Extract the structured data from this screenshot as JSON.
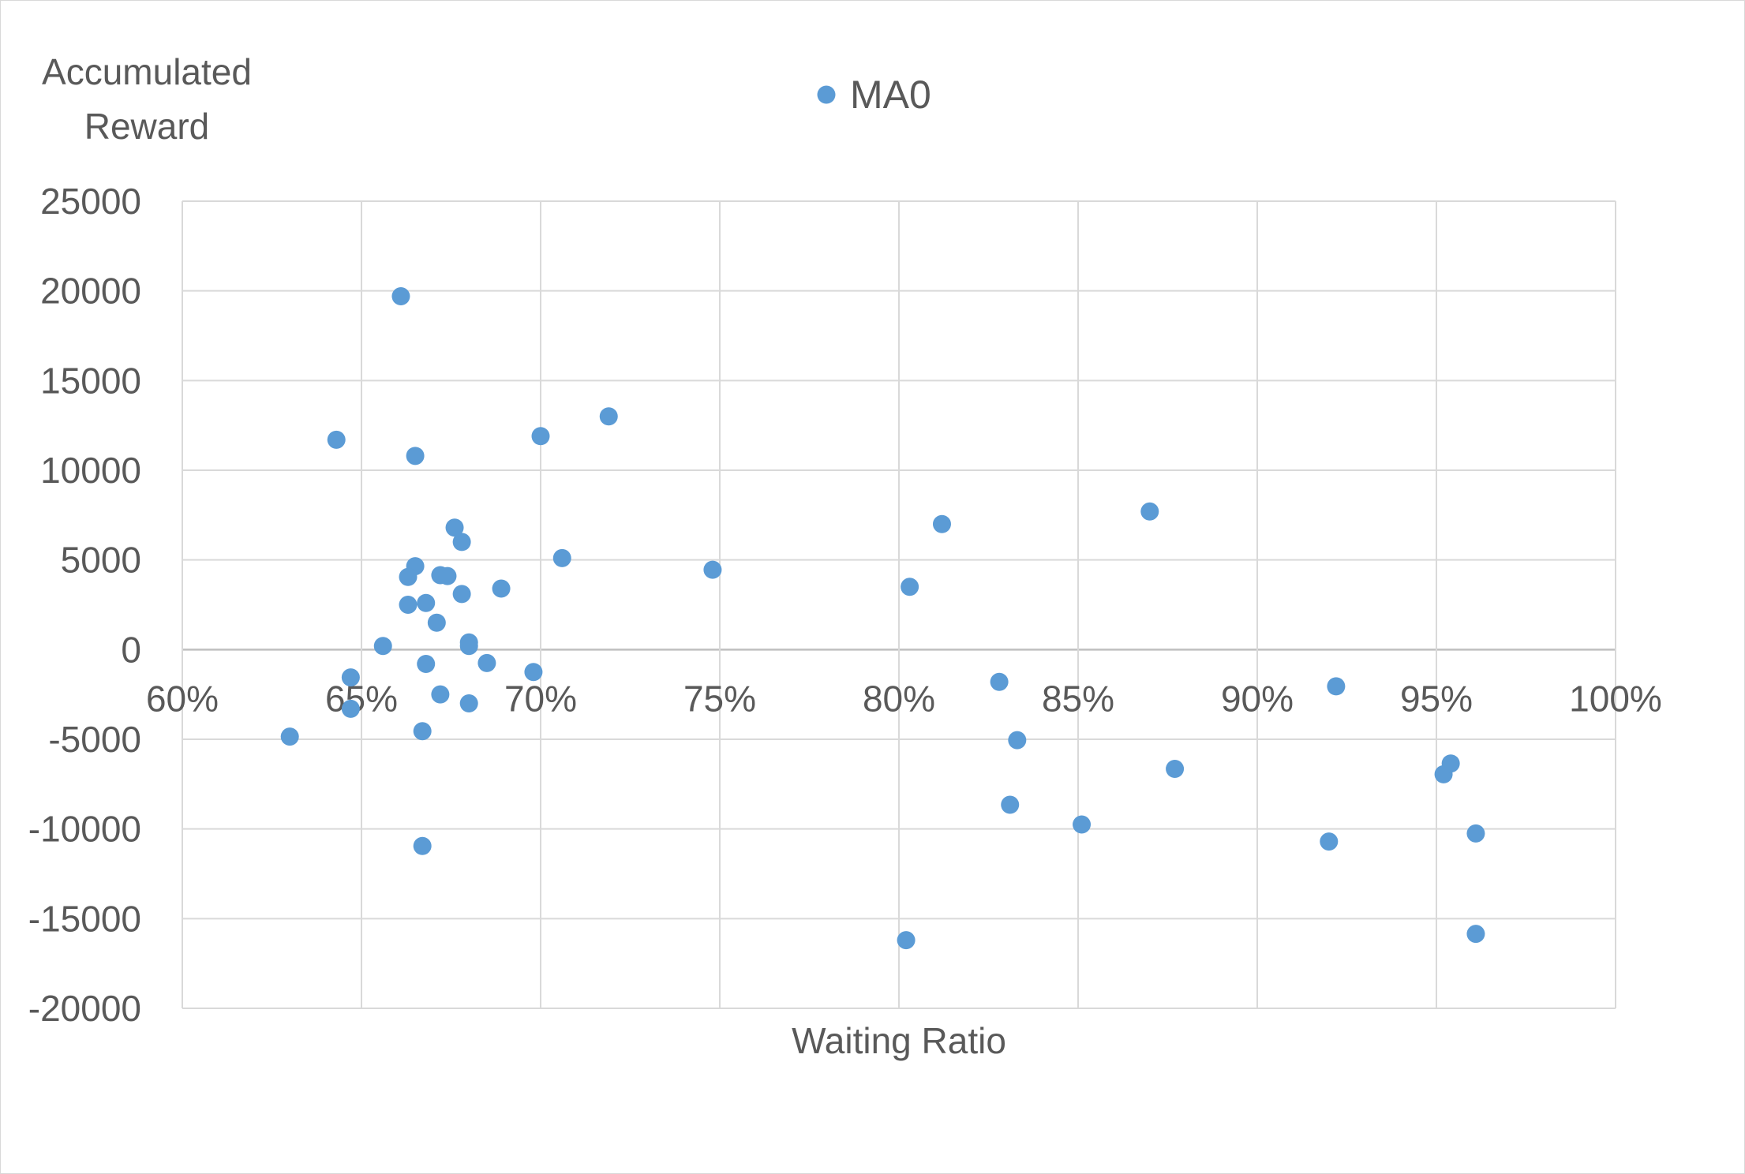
{
  "chart_data": {
    "type": "scatter",
    "title": "",
    "xlabel": "Waiting Ratio",
    "ylabel_lines": [
      "Accumulated",
      "Reward"
    ],
    "xlim": [
      0.6,
      1.0
    ],
    "ylim": [
      -20000,
      25000
    ],
    "x_ticks": [
      0.6,
      0.65,
      0.7,
      0.75,
      0.8,
      0.85,
      0.9,
      0.95,
      1.0
    ],
    "x_tick_labels": [
      "60%",
      "65%",
      "70%",
      "75%",
      "80%",
      "85%",
      "90%",
      "95%",
      "100%"
    ],
    "y_ticks": [
      25000,
      20000,
      15000,
      10000,
      5000,
      0,
      -5000,
      -10000,
      -15000,
      -20000
    ],
    "y_tick_labels": [
      "25000",
      "20000",
      "15000",
      "10000",
      "5000",
      "0",
      "-5000",
      "-10000",
      "-15000",
      "-20000"
    ],
    "grid": true,
    "legend_position": "top-center",
    "colors": {
      "marker": "#5b9bd5",
      "grid": "#d9d9d9",
      "zero_axis": "#bfbfbf",
      "text": "#595959"
    },
    "series": [
      {
        "name": "MA0",
        "points": [
          {
            "x": 0.661,
            "y": 19700
          },
          {
            "x": 0.643,
            "y": 11700
          },
          {
            "x": 0.665,
            "y": 10800
          },
          {
            "x": 0.7,
            "y": 11900
          },
          {
            "x": 0.719,
            "y": 13000
          },
          {
            "x": 0.676,
            "y": 6800
          },
          {
            "x": 0.678,
            "y": 6000
          },
          {
            "x": 0.706,
            "y": 5100
          },
          {
            "x": 0.748,
            "y": 4450
          },
          {
            "x": 0.665,
            "y": 4650
          },
          {
            "x": 0.663,
            "y": 4050
          },
          {
            "x": 0.672,
            "y": 4150
          },
          {
            "x": 0.674,
            "y": 4100
          },
          {
            "x": 0.678,
            "y": 3100
          },
          {
            "x": 0.689,
            "y": 3400
          },
          {
            "x": 0.663,
            "y": 2500
          },
          {
            "x": 0.668,
            "y": 2600
          },
          {
            "x": 0.671,
            "y": 1500
          },
          {
            "x": 0.68,
            "y": 400
          },
          {
            "x": 0.68,
            "y": 200
          },
          {
            "x": 0.656,
            "y": 200
          },
          {
            "x": 0.668,
            "y": -800
          },
          {
            "x": 0.685,
            "y": -750
          },
          {
            "x": 0.698,
            "y": -1250
          },
          {
            "x": 0.647,
            "y": -1550
          },
          {
            "x": 0.672,
            "y": -2500
          },
          {
            "x": 0.68,
            "y": -3000
          },
          {
            "x": 0.647,
            "y": -3300
          },
          {
            "x": 0.667,
            "y": -4550
          },
          {
            "x": 0.63,
            "y": -4850
          },
          {
            "x": 0.667,
            "y": -10950
          },
          {
            "x": 0.812,
            "y": 7000
          },
          {
            "x": 0.87,
            "y": 7700
          },
          {
            "x": 0.803,
            "y": 3500
          },
          {
            "x": 0.828,
            "y": -1800
          },
          {
            "x": 0.833,
            "y": -5050
          },
          {
            "x": 0.831,
            "y": -8650
          },
          {
            "x": 0.851,
            "y": -9750
          },
          {
            "x": 0.877,
            "y": -6650
          },
          {
            "x": 0.802,
            "y": -16200
          },
          {
            "x": 0.922,
            "y": -2050
          },
          {
            "x": 0.92,
            "y": -10700
          },
          {
            "x": 0.952,
            "y": -6950
          },
          {
            "x": 0.954,
            "y": -6350
          },
          {
            "x": 0.961,
            "y": -10250
          },
          {
            "x": 0.961,
            "y": -15850
          }
        ]
      }
    ]
  }
}
